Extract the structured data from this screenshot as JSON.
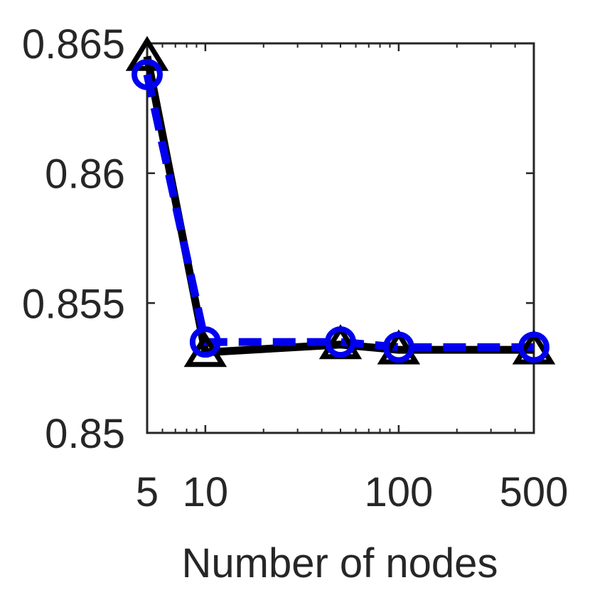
{
  "chart_data": {
    "type": "line",
    "title": "",
    "xlabel": "Number of nodes",
    "ylabel": "",
    "x_scale": "log",
    "xlim": [
      5,
      500
    ],
    "ylim": [
      0.85,
      0.865
    ],
    "x_ticks": [
      5,
      10,
      100,
      500
    ],
    "x_tick_labels": [
      "5",
      "10",
      "100",
      "500"
    ],
    "y_ticks": [
      0.85,
      0.855,
      0.86,
      0.865
    ],
    "y_tick_labels": [
      "0.85",
      "0.855",
      "0.86",
      "0.865"
    ],
    "grid": false,
    "legend": "none",
    "series": [
      {
        "color": "#000000",
        "line_style": "solid",
        "marker": "triangle",
        "x": [
          5,
          10,
          50,
          100,
          500
        ],
        "values": [
          0.8645,
          0.8531,
          0.8534,
          0.8532,
          0.8532
        ]
      },
      {
        "color": "#0000ee",
        "line_style": "dashed",
        "marker": "circle",
        "x": [
          5,
          10,
          50,
          100,
          500
        ],
        "values": [
          0.8638,
          0.8535,
          0.8535,
          0.8533,
          0.8533
        ]
      }
    ]
  }
}
